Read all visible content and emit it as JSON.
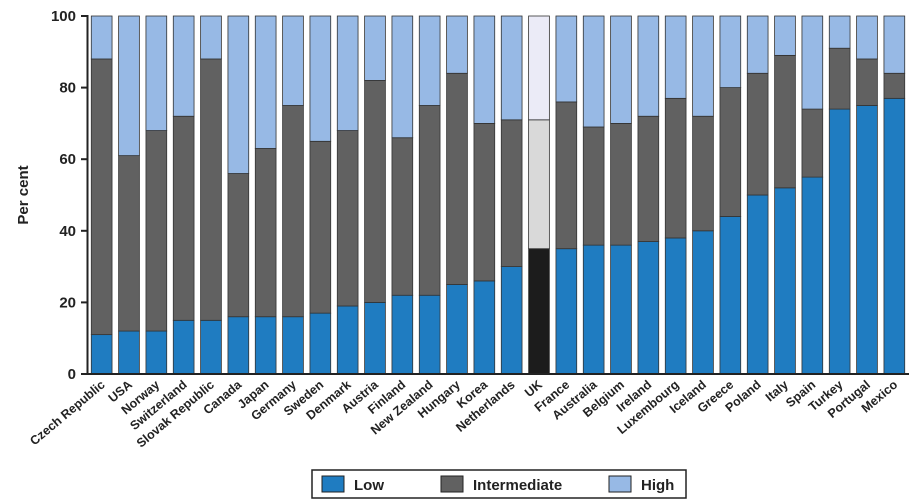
{
  "chart_data": {
    "type": "bar",
    "stacked": true,
    "title": "",
    "xlabel": "",
    "ylabel": "Per cent",
    "ylim": [
      0,
      100
    ],
    "yticks": [
      0,
      20,
      40,
      60,
      80,
      100
    ],
    "grid": false,
    "legend_position": "bottom",
    "categories": [
      "Czech Republic",
      "USA",
      "Norway",
      "Switzerland",
      "Slovak Republic",
      "Canada",
      "Japan",
      "Germany",
      "Sweden",
      "Denmark",
      "Austria",
      "Finland",
      "New Zealand",
      "Hungary",
      "Korea",
      "Netherlands",
      "UK",
      "France",
      "Australia",
      "Belgium",
      "Ireland",
      "Luxembourg",
      "Iceland",
      "Greece",
      "Poland",
      "Italy",
      "Spain",
      "Turkey",
      "Portugal",
      "Mexico"
    ],
    "highlight_category": "UK",
    "series": [
      {
        "name": "Low",
        "color": "#1f7cc1",
        "highlight_color": "#1c1c1c",
        "values": [
          11,
          12,
          12,
          15,
          15,
          16,
          16,
          16,
          17,
          19,
          20,
          22,
          22,
          25,
          26,
          30,
          35,
          35,
          36,
          36,
          37,
          38,
          40,
          44,
          50,
          52,
          55,
          74,
          75,
          77
        ]
      },
      {
        "name": "Intermediate",
        "color": "#616161",
        "highlight_color": "#d9d9d9",
        "values": [
          77,
          49,
          56,
          57,
          73,
          40,
          47,
          59,
          48,
          49,
          62,
          44,
          53,
          59,
          44,
          41,
          36,
          41,
          33,
          34,
          35,
          39,
          32,
          36,
          34,
          37,
          19,
          17,
          13,
          7
        ]
      },
      {
        "name": "High",
        "color": "#97b9e5",
        "highlight_color": "#ebebf7",
        "values": [
          12,
          39,
          32,
          28,
          12,
          44,
          37,
          25,
          35,
          32,
          18,
          34,
          25,
          16,
          30,
          29,
          29,
          24,
          31,
          30,
          28,
          23,
          28,
          20,
          16,
          11,
          26,
          9,
          12,
          16
        ]
      }
    ]
  }
}
